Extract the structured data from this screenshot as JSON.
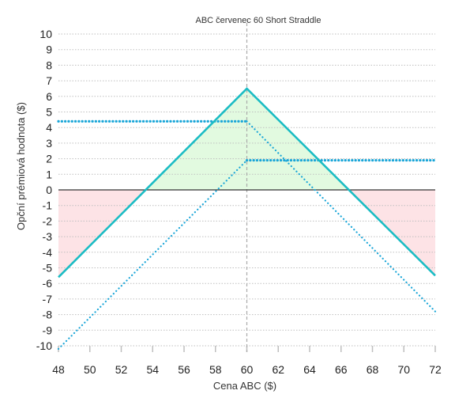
{
  "chart_data": {
    "type": "line",
    "title": "ABC červenec 60 Short Straddle",
    "xlabel": "Cena ABC ($)",
    "ylabel": "Opční prémiová hodnota ($)",
    "xlim": [
      48,
      72
    ],
    "ylim": [
      -10,
      10
    ],
    "x_ticks": [
      "48",
      "50",
      "52",
      "54",
      "56",
      "58",
      "60",
      "62",
      "64",
      "66",
      "68",
      "70",
      "72"
    ],
    "y_ticks": [
      "10",
      "9",
      "8",
      "7",
      "6",
      "5",
      "4",
      "3",
      "2",
      "1",
      "0",
      "-1",
      "-2",
      "-3",
      "-4",
      "-5",
      "-6",
      "-7",
      "-8",
      "-9",
      "-10"
    ],
    "grid": true,
    "series": [
      {
        "style": "solid",
        "color": "#1bbcc4",
        "x": [
          48,
          60,
          72
        ],
        "y": [
          -5.6,
          6.5,
          -5.5
        ]
      },
      {
        "style": "dotted-put",
        "color": "#1aa6d8",
        "x": [
          48,
          60,
          72
        ],
        "y": [
          4.4,
          4.4,
          -7.8
        ]
      },
      {
        "style": "dotted-call",
        "color": "#1aa6d8",
        "x": [
          48,
          60,
          72
        ],
        "y": [
          -10.2,
          1.9,
          1.9
        ]
      }
    ],
    "breakevens": [
      53.5,
      66.5
    ],
    "strike": 60,
    "colors": {
      "profit": "#e2fae0",
      "loss": "#fde3e6",
      "grid": "#bfbfbf",
      "zero": "#333333"
    }
  }
}
